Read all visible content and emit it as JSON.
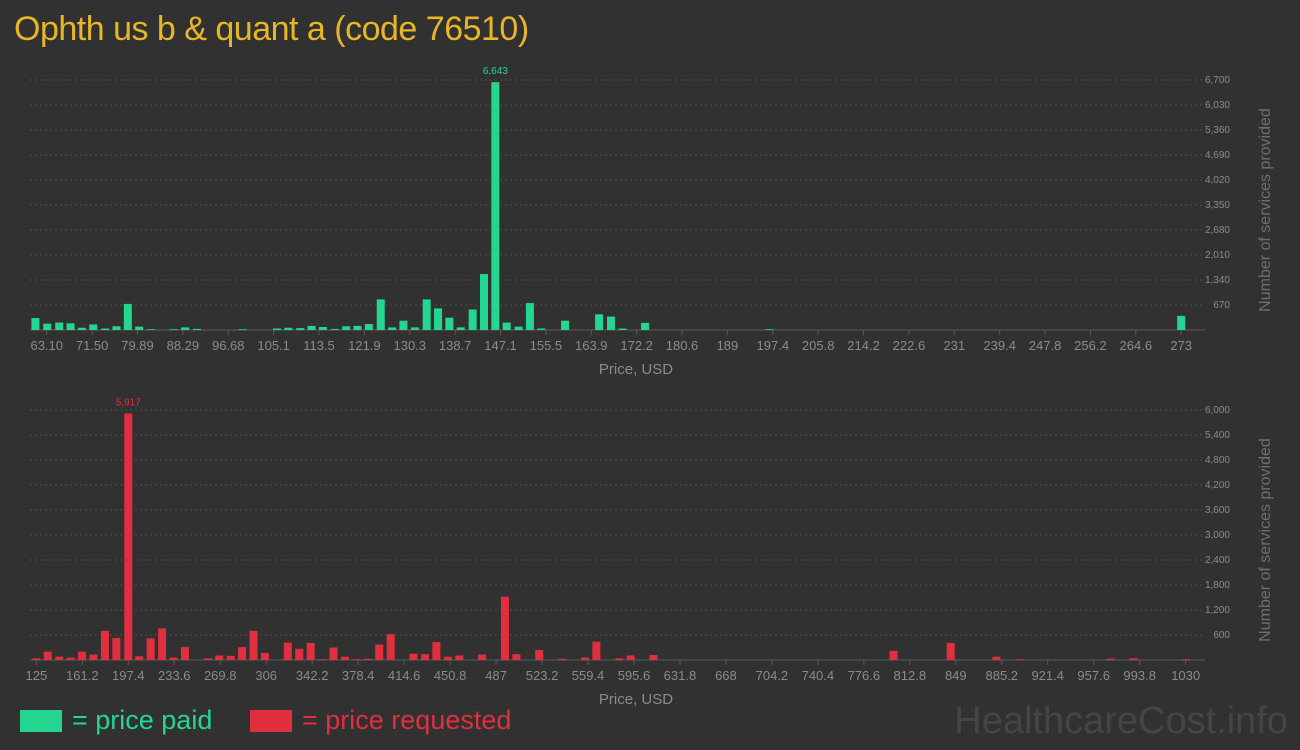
{
  "title": "Ophth us b & quant a (code 76510)",
  "colors": {
    "background": "#313131",
    "paid": "#24d68f",
    "requested": "#e0303f",
    "title": "#e7b626",
    "axis_text": "#8b8b8b",
    "grid": "#4e4e4e"
  },
  "legend": {
    "paid_label": "= price paid",
    "requested_label": "= price requested"
  },
  "watermark": "HealthcareCost.info",
  "chart_data": [
    {
      "type": "bar",
      "series_name": "price paid",
      "xlabel": "Price, USD",
      "ylabel": "Number of services provided",
      "xlim": [
        60.0,
        275.0
      ],
      "ylim": [
        0,
        6700
      ],
      "x_ticks": [
        "63.10",
        "71.50",
        "79.89",
        "88.29",
        "96.68",
        "105.1",
        "113.5",
        "121.9",
        "130.3",
        "138.7",
        "147.1",
        "155.5",
        "163.9",
        "172.2",
        "180.6",
        "189",
        "197.4",
        "205.8",
        "214.2",
        "222.6",
        "231",
        "239.4",
        "247.8",
        "256.2",
        "264.6",
        "273"
      ],
      "y_ticks": [
        "670",
        "1,340",
        "2,010",
        "2,680",
        "3,350",
        "4,020",
        "4,690",
        "5,360",
        "6,030",
        "6,700"
      ],
      "peak_label": "6,643",
      "grid": true,
      "bars": [
        {
          "x": 61.0,
          "y": 320
        },
        {
          "x": 63.2,
          "y": 170
        },
        {
          "x": 65.4,
          "y": 200
        },
        {
          "x": 67.5,
          "y": 180
        },
        {
          "x": 69.6,
          "y": 60
        },
        {
          "x": 71.7,
          "y": 150
        },
        {
          "x": 73.9,
          "y": 40
        },
        {
          "x": 76.0,
          "y": 100
        },
        {
          "x": 78.1,
          "y": 700
        },
        {
          "x": 80.2,
          "y": 90
        },
        {
          "x": 82.4,
          "y": 10
        },
        {
          "x": 86.6,
          "y": 15
        },
        {
          "x": 88.7,
          "y": 70
        },
        {
          "x": 90.9,
          "y": 30
        },
        {
          "x": 99.3,
          "y": 20
        },
        {
          "x": 105.7,
          "y": 40
        },
        {
          "x": 107.8,
          "y": 60
        },
        {
          "x": 110.0,
          "y": 50
        },
        {
          "x": 112.1,
          "y": 110
        },
        {
          "x": 114.2,
          "y": 80
        },
        {
          "x": 116.4,
          "y": 30
        },
        {
          "x": 118.5,
          "y": 100
        },
        {
          "x": 120.6,
          "y": 110
        },
        {
          "x": 122.7,
          "y": 160
        },
        {
          "x": 124.9,
          "y": 820
        },
        {
          "x": 127.0,
          "y": 70
        },
        {
          "x": 129.1,
          "y": 250
        },
        {
          "x": 131.2,
          "y": 70
        },
        {
          "x": 133.4,
          "y": 820
        },
        {
          "x": 135.5,
          "y": 580
        },
        {
          "x": 137.6,
          "y": 330
        },
        {
          "x": 139.7,
          "y": 70
        },
        {
          "x": 141.9,
          "y": 550
        },
        {
          "x": 144.0,
          "y": 1500
        },
        {
          "x": 146.1,
          "y": 6643
        },
        {
          "x": 148.2,
          "y": 200
        },
        {
          "x": 150.4,
          "y": 90
        },
        {
          "x": 152.5,
          "y": 720
        },
        {
          "x": 154.6,
          "y": 40
        },
        {
          "x": 159.0,
          "y": 250
        },
        {
          "x": 165.3,
          "y": 420
        },
        {
          "x": 167.5,
          "y": 360
        },
        {
          "x": 169.6,
          "y": 40
        },
        {
          "x": 173.8,
          "y": 190
        },
        {
          "x": 196.8,
          "y": 20
        },
        {
          "x": 273.0,
          "y": 380
        }
      ]
    },
    {
      "type": "bar",
      "series_name": "price requested",
      "xlabel": "Price, USD",
      "ylabel": "Number of services provided",
      "xlim": [
        120.0,
        1035.0
      ],
      "ylim": [
        0,
        6000
      ],
      "x_ticks": [
        "125",
        "161.2",
        "197.4",
        "233.6",
        "269.8",
        "306",
        "342.2",
        "378.4",
        "414.6",
        "450.8",
        "487",
        "523.2",
        "559.4",
        "595.6",
        "631.8",
        "668",
        "704.2",
        "740.4",
        "776.6",
        "812.8",
        "849",
        "885.2",
        "921.4",
        "957.6",
        "993.8",
        "1030"
      ],
      "y_ticks": [
        "600",
        "1,200",
        "1,800",
        "2,400",
        "3,000",
        "3,600",
        "4,200",
        "4,800",
        "5,400",
        "6,000"
      ],
      "peak_label": "5,917",
      "grid": true,
      "bars": [
        {
          "x": 125.0,
          "y": 40
        },
        {
          "x": 134.0,
          "y": 200
        },
        {
          "x": 143.0,
          "y": 80
        },
        {
          "x": 152.0,
          "y": 60
        },
        {
          "x": 161.0,
          "y": 200
        },
        {
          "x": 170.0,
          "y": 130
        },
        {
          "x": 179.0,
          "y": 700
        },
        {
          "x": 188.0,
          "y": 530
        },
        {
          "x": 197.4,
          "y": 5917
        },
        {
          "x": 206.0,
          "y": 90
        },
        {
          "x": 215.0,
          "y": 520
        },
        {
          "x": 224.0,
          "y": 760
        },
        {
          "x": 233.0,
          "y": 60
        },
        {
          "x": 242.0,
          "y": 310
        },
        {
          "x": 260.0,
          "y": 40
        },
        {
          "x": 269.0,
          "y": 110
        },
        {
          "x": 278.0,
          "y": 100
        },
        {
          "x": 287.0,
          "y": 310
        },
        {
          "x": 296.0,
          "y": 700
        },
        {
          "x": 305.0,
          "y": 170
        },
        {
          "x": 323.0,
          "y": 420
        },
        {
          "x": 332.0,
          "y": 270
        },
        {
          "x": 341.0,
          "y": 410
        },
        {
          "x": 350.0,
          "y": 20
        },
        {
          "x": 359.0,
          "y": 300
        },
        {
          "x": 368.0,
          "y": 80
        },
        {
          "x": 377.0,
          "y": 20
        },
        {
          "x": 386.0,
          "y": 30
        },
        {
          "x": 395.0,
          "y": 370
        },
        {
          "x": 404.0,
          "y": 620
        },
        {
          "x": 422.0,
          "y": 150
        },
        {
          "x": 431.0,
          "y": 140
        },
        {
          "x": 440.0,
          "y": 430
        },
        {
          "x": 449.0,
          "y": 80
        },
        {
          "x": 458.0,
          "y": 110
        },
        {
          "x": 476.0,
          "y": 130
        },
        {
          "x": 494.0,
          "y": 1520
        },
        {
          "x": 503.0,
          "y": 140
        },
        {
          "x": 521.0,
          "y": 240
        },
        {
          "x": 539.0,
          "y": 30
        },
        {
          "x": 557.0,
          "y": 60
        },
        {
          "x": 566.0,
          "y": 440
        },
        {
          "x": 584.0,
          "y": 40
        },
        {
          "x": 593.0,
          "y": 110
        },
        {
          "x": 611.0,
          "y": 120
        },
        {
          "x": 800.0,
          "y": 220
        },
        {
          "x": 845.0,
          "y": 410
        },
        {
          "x": 881.0,
          "y": 80
        },
        {
          "x": 899.0,
          "y": 20
        },
        {
          "x": 971.0,
          "y": 30
        },
        {
          "x": 989.0,
          "y": 40
        },
        {
          "x": 1030.0,
          "y": 20
        }
      ]
    }
  ]
}
